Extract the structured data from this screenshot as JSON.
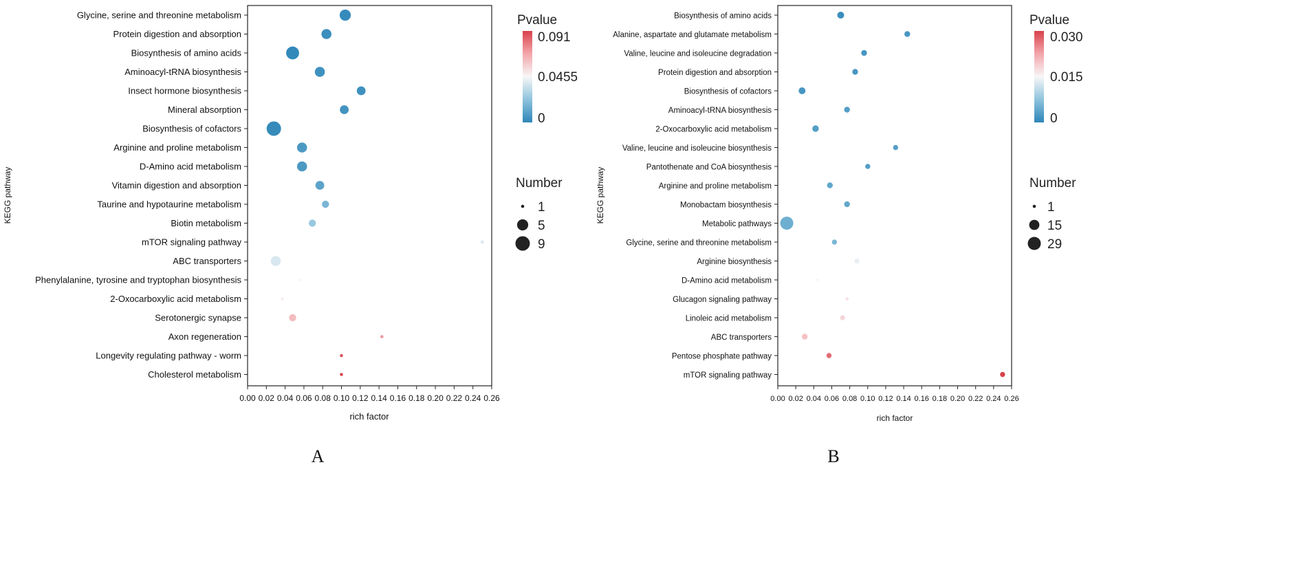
{
  "chart_data": [
    {
      "panel": "A",
      "type": "scatter",
      "xlabel": "rich factor",
      "ylabel": "KEGG pathway",
      "xlim": [
        0.0,
        0.26
      ],
      "x_ticks": [
        "0.00",
        "0.02",
        "0.04",
        "0.06",
        "0.08",
        "0.10",
        "0.12",
        "0.14",
        "0.16",
        "0.18",
        "0.20",
        "0.22",
        "0.24",
        "0.26"
      ],
      "color_legend": {
        "title": "Pvalue",
        "max": 0.091,
        "mid": 0.0455,
        "min": 0,
        "max_label": "0.091",
        "mid_label": "0.0455",
        "min_label": "0"
      },
      "size_legend": {
        "title": "Number",
        "items": [
          {
            "value": 1,
            "label": "1"
          },
          {
            "value": 5,
            "label": "5"
          },
          {
            "value": 9,
            "label": "9"
          }
        ],
        "max": 9
      },
      "points": [
        {
          "pathway": "Glycine, serine and threonine metabolism",
          "rich_factor": 0.104,
          "pvalue": 0.002,
          "number": 5
        },
        {
          "pathway": "Protein digestion and absorption",
          "rich_factor": 0.084,
          "pvalue": 0.003,
          "number": 4
        },
        {
          "pathway": "Biosynthesis of amino acids",
          "rich_factor": 0.048,
          "pvalue": 0.001,
          "number": 7
        },
        {
          "pathway": "Aminoacyl-tRNA biosynthesis",
          "rich_factor": 0.077,
          "pvalue": 0.004,
          "number": 4
        },
        {
          "pathway": "Insect hormone biosynthesis",
          "rich_factor": 0.121,
          "pvalue": 0.004,
          "number": 3
        },
        {
          "pathway": "Mineral absorption",
          "rich_factor": 0.103,
          "pvalue": 0.005,
          "number": 3
        },
        {
          "pathway": "Biosynthesis of cofactors",
          "rich_factor": 0.028,
          "pvalue": 0.002,
          "number": 9
        },
        {
          "pathway": "Arginine and proline metabolism",
          "rich_factor": 0.058,
          "pvalue": 0.007,
          "number": 4
        },
        {
          "pathway": "D-Amino acid metabolism",
          "rich_factor": 0.058,
          "pvalue": 0.007,
          "number": 4
        },
        {
          "pathway": "Vitamin digestion and absorption",
          "rich_factor": 0.077,
          "pvalue": 0.011,
          "number": 3
        },
        {
          "pathway": "Taurine and hypotaurine metabolism",
          "rich_factor": 0.083,
          "pvalue": 0.018,
          "number": 2
        },
        {
          "pathway": "Biotin metabolism",
          "rich_factor": 0.069,
          "pvalue": 0.025,
          "number": 2
        },
        {
          "pathway": "mTOR signaling pathway",
          "rich_factor": 0.25,
          "pvalue": 0.038,
          "number": 1
        },
        {
          "pathway": "ABC transporters",
          "rich_factor": 0.03,
          "pvalue": 0.039,
          "number": 4
        },
        {
          "pathway": "Phenylalanine, tyrosine and tryptophan biosynthesis",
          "rich_factor": 0.056,
          "pvalue": 0.046,
          "number": 1
        },
        {
          "pathway": "2-Oxocarboxylic acid metabolism",
          "rich_factor": 0.037,
          "pvalue": 0.048,
          "number": 1
        },
        {
          "pathway": "Serotonergic synapse",
          "rich_factor": 0.048,
          "pvalue": 0.062,
          "number": 2
        },
        {
          "pathway": "Axon regeneration",
          "rich_factor": 0.143,
          "pvalue": 0.072,
          "number": 1
        },
        {
          "pathway": "Longevity regulating pathway - worm",
          "rich_factor": 0.1,
          "pvalue": 0.087,
          "number": 1
        },
        {
          "pathway": "Cholesterol metabolism",
          "rich_factor": 0.1,
          "pvalue": 0.09,
          "number": 1
        }
      ]
    },
    {
      "panel": "B",
      "type": "scatter",
      "xlabel": "rich factor",
      "ylabel": "KEGG pathway",
      "xlim": [
        0.0,
        0.26
      ],
      "x_ticks": [
        "0.00",
        "0.02",
        "0.04",
        "0.06",
        "0.08",
        "0.10",
        "0.12",
        "0.14",
        "0.16",
        "0.18",
        "0.20",
        "0.22",
        "0.24",
        "0.26"
      ],
      "color_legend": {
        "title": "Pvalue",
        "max": 0.03,
        "mid": 0.015,
        "min": 0,
        "max_label": "0.030",
        "mid_label": "0.015",
        "min_label": "0"
      },
      "size_legend": {
        "title": "Number",
        "items": [
          {
            "value": 1,
            "label": "1"
          },
          {
            "value": 15,
            "label": "15"
          },
          {
            "value": 29,
            "label": "29"
          }
        ],
        "max": 29
      },
      "points": [
        {
          "pathway": "Biosynthesis of amino acids",
          "rich_factor": 0.07,
          "pvalue": 0.001,
          "number": 5
        },
        {
          "pathway": "Alanine, aspartate and glutamate metabolism",
          "rich_factor": 0.144,
          "pvalue": 0.002,
          "number": 3
        },
        {
          "pathway": "Valine, leucine and isoleucine degradation",
          "rich_factor": 0.096,
          "pvalue": 0.002,
          "number": 3
        },
        {
          "pathway": "Protein digestion and absorption",
          "rich_factor": 0.086,
          "pvalue": 0.002,
          "number": 3
        },
        {
          "pathway": "Biosynthesis of cofactors",
          "rich_factor": 0.027,
          "pvalue": 0.002,
          "number": 5
        },
        {
          "pathway": "Aminoacyl-tRNA biosynthesis",
          "rich_factor": 0.077,
          "pvalue": 0.003,
          "number": 3
        },
        {
          "pathway": "2-Oxocarboxylic acid metabolism",
          "rich_factor": 0.042,
          "pvalue": 0.003,
          "number": 4
        },
        {
          "pathway": "Valine, leucine and isoleucine biosynthesis",
          "rich_factor": 0.131,
          "pvalue": 0.003,
          "number": 2
        },
        {
          "pathway": "Pantothenate and CoA biosynthesis",
          "rich_factor": 0.1,
          "pvalue": 0.003,
          "number": 2
        },
        {
          "pathway": "Arginine and proline metabolism",
          "rich_factor": 0.058,
          "pvalue": 0.004,
          "number": 3
        },
        {
          "pathway": "Monobactam biosynthesis",
          "rich_factor": 0.077,
          "pvalue": 0.004,
          "number": 3
        },
        {
          "pathway": "Metabolic pathways",
          "rich_factor": 0.01,
          "pvalue": 0.005,
          "number": 29
        },
        {
          "pathway": "Glycine, serine and threonine metabolism",
          "rich_factor": 0.063,
          "pvalue": 0.006,
          "number": 2
        },
        {
          "pathway": "Arginine biosynthesis",
          "rich_factor": 0.088,
          "pvalue": 0.014,
          "number": 2
        },
        {
          "pathway": "D-Amino acid metabolism",
          "rich_factor": 0.044,
          "pvalue": 0.015,
          "number": 1
        },
        {
          "pathway": "Glucagon signaling pathway",
          "rich_factor": 0.077,
          "pvalue": 0.017,
          "number": 1
        },
        {
          "pathway": "Linoleic acid metabolism",
          "rich_factor": 0.072,
          "pvalue": 0.018,
          "number": 2
        },
        {
          "pathway": "ABC transporters",
          "rich_factor": 0.03,
          "pvalue": 0.02,
          "number": 3
        },
        {
          "pathway": "Pentose phosphate pathway",
          "rich_factor": 0.057,
          "pvalue": 0.027,
          "number": 2
        },
        {
          "pathway": "mTOR signaling pathway",
          "rich_factor": 0.25,
          "pvalue": 0.03,
          "number": 2
        }
      ]
    }
  ],
  "panel_letters": {
    "a": "A",
    "b": "B"
  }
}
